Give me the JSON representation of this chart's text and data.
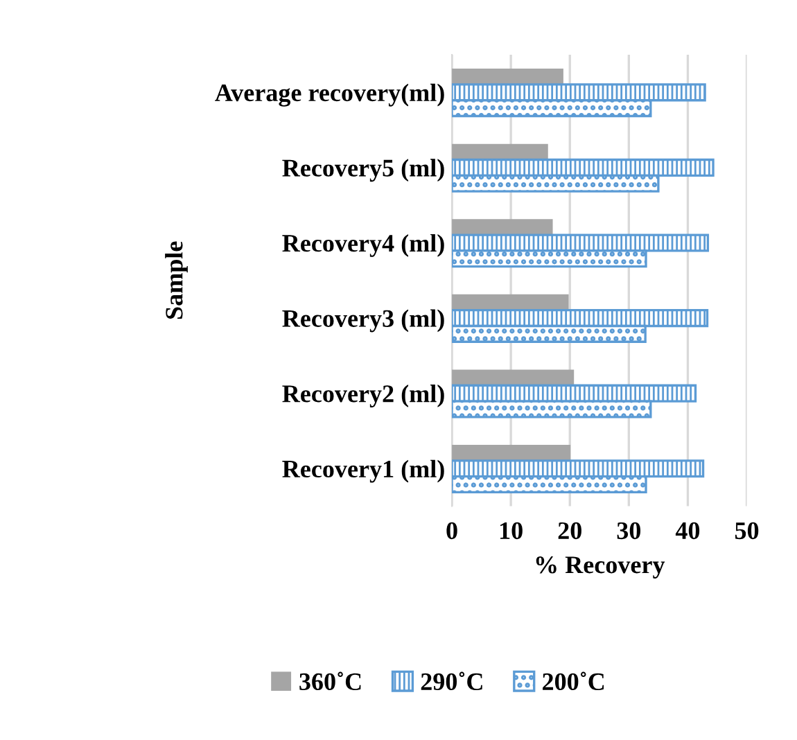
{
  "chart_data": {
    "type": "bar",
    "orientation": "horizontal",
    "xlabel": "% Recovery",
    "ylabel": "Sample",
    "categories": [
      "Average recovery(ml)",
      "Recovery5 (ml)",
      "Recovery4 (ml)",
      "Recovery3 (ml)",
      "Recovery2 (ml)",
      "Recovery1 (ml)"
    ],
    "series": [
      {
        "name": "360˚C",
        "color": "#a5a5a5",
        "values": [
          18.9,
          16.3,
          17.1,
          19.8,
          20.7,
          20.1
        ]
      },
      {
        "name": "290˚C",
        "color": "#5b9bd5",
        "values": [
          42.9,
          44.3,
          43.4,
          43.3,
          41.3,
          42.6
        ]
      },
      {
        "name": "200˚C",
        "color": "#5b9bd5",
        "values": [
          33.7,
          35.0,
          32.9,
          32.8,
          33.7,
          32.9
        ]
      }
    ],
    "xlim": [
      0,
      50
    ],
    "xticks": [
      0,
      10,
      20,
      30,
      40,
      50
    ],
    "grid": "x",
    "legend": "bottom"
  }
}
